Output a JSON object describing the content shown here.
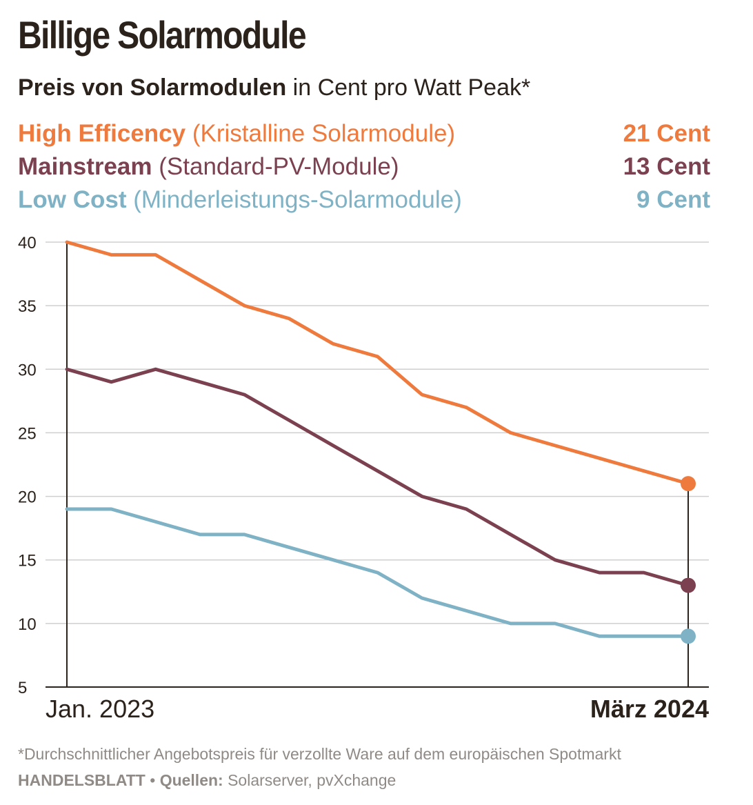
{
  "title": "Billige Solarmodule",
  "subtitle": {
    "bold": "Preis von Solarmodulen",
    "rest": " in Cent pro Watt Peak*"
  },
  "legend": [
    {
      "name": "High Efficency",
      "desc": " (Kristalline Solarmodule)",
      "value": "21 Cent",
      "color": "#ef7a3e"
    },
    {
      "name": "Mainstream",
      "desc": " (Standard-PV-Module)",
      "value": "13 Cent",
      "color": "#7c4150"
    },
    {
      "name": "Low Cost",
      "desc": " (Minderleistungs-Solarmodule)",
      "value": "9 Cent",
      "color": "#7eb2c4"
    }
  ],
  "chart_data": {
    "type": "line",
    "x": [
      0,
      1,
      2,
      3,
      4,
      5,
      6,
      7,
      8,
      9,
      10,
      11,
      12,
      13,
      14
    ],
    "x_start_label": "Jan. 2023",
    "x_end_label": "März 2024",
    "ylim": [
      5,
      40
    ],
    "yticks": [
      5,
      10,
      15,
      20,
      25,
      30,
      35,
      40
    ],
    "grid": true,
    "series": [
      {
        "name": "High Efficency",
        "color": "#ef7a3e",
        "values": [
          40,
          39,
          39,
          37,
          35,
          34,
          32,
          31,
          28,
          27,
          25,
          24,
          23,
          22,
          21
        ]
      },
      {
        "name": "Mainstream",
        "color": "#7c4150",
        "values": [
          30,
          29,
          30,
          29,
          28,
          26,
          24,
          22,
          20,
          19,
          17,
          15,
          14,
          14,
          13
        ]
      },
      {
        "name": "Low Cost",
        "color": "#7eb2c4",
        "values": [
          19,
          19,
          18,
          17,
          17,
          16,
          15,
          14,
          12,
          11,
          10,
          10,
          9,
          9,
          9
        ]
      }
    ]
  },
  "footnote": "*Durchschnittlicher Angebotspreis für verzollte Ware auf dem europäischen Spotmarkt",
  "credits": {
    "brand": "HANDELSBLATT",
    "sep": " • ",
    "sources_label": "Quellen:",
    "sources": " Solarserver, pvXchange"
  }
}
